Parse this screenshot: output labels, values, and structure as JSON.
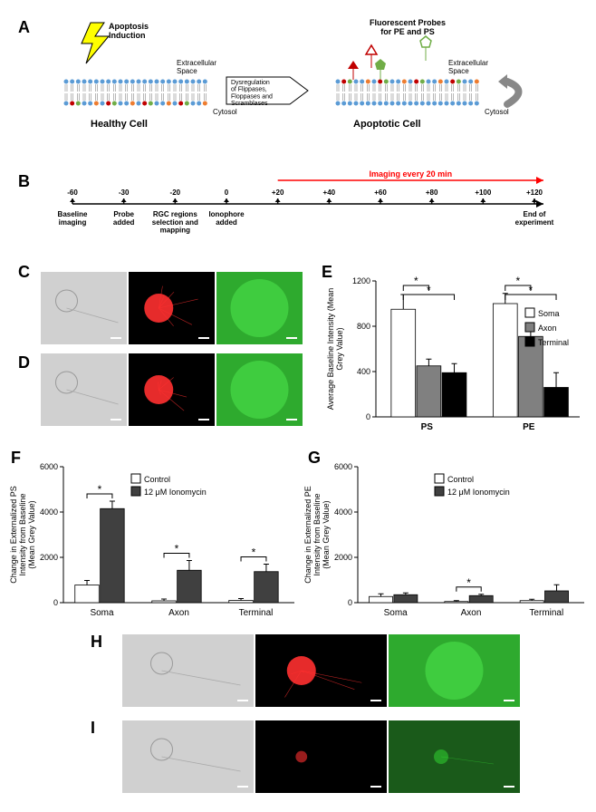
{
  "labels": {
    "A": "A",
    "B": "B",
    "C": "C",
    "D": "D",
    "E": "E",
    "F": "F",
    "G": "G",
    "H": "H",
    "I": "I"
  },
  "panelA": {
    "apoptosis_induction": "Apoptosis\nInduction",
    "extracellular": "Extracellular\nSpace",
    "cytosol": "Cytosol",
    "healthy": "Healthy Cell",
    "apoptotic": "Apoptotic Cell",
    "middle": "Dysregulation\nof Flippases,\nFloppases and\nScramblases",
    "probes": "Fluorescent Probes\nfor PE and PS",
    "colors": {
      "blue": "#5b9bd5",
      "red": "#c00000",
      "green": "#70ad47",
      "orange": "#ed7d31",
      "bolt_fill": "#ffff00",
      "bolt_stroke": "#000000",
      "probe_red": "#c00000",
      "probe_green": "#70ad47"
    }
  },
  "panelB": {
    "timepoints": [
      "-60",
      "-30",
      "-20",
      "0",
      "+20",
      "+40",
      "+60",
      "+80",
      "+100",
      "+120"
    ],
    "labels_below": [
      "Baseline\nimaging",
      "Probe\nadded",
      "RGC regions\nselection and\nmapping",
      "Ionophore\nadded",
      "",
      "",
      "",
      "",
      "",
      "End of\nexperiment"
    ],
    "imaging_text": "Imaging every 20 min",
    "line_color": "#000000",
    "arrow_color": "#ff0000"
  },
  "panelE": {
    "type": "bar",
    "title": null,
    "ylabel": "Average Baseline Intensity (Mean\nGrey Value)",
    "ylim": [
      0,
      1200
    ],
    "yticks": [
      0,
      400,
      800,
      1200
    ],
    "groups": [
      "PS",
      "PE"
    ],
    "series": [
      {
        "name": "Soma",
        "color": "#ffffff",
        "values": [
          950,
          1000
        ],
        "err": [
          130,
          90
        ]
      },
      {
        "name": "Axon",
        "color": "#808080",
        "values": [
          450,
          710
        ],
        "err": [
          60,
          80
        ]
      },
      {
        "name": "Terminal",
        "color": "#000000",
        "values": [
          390,
          260
        ],
        "err": [
          80,
          130
        ]
      }
    ],
    "sig_pairs": [
      [
        0,
        0,
        1
      ],
      [
        0,
        0,
        2
      ],
      [
        1,
        0,
        1
      ],
      [
        1,
        0,
        2
      ]
    ],
    "sig_label": "*",
    "axis_color": "#000000",
    "font_size": 10
  },
  "panelF": {
    "type": "bar",
    "ylabel": "Change in Externalized PS\nIntensity from Baseline\n(Mean Grey Value)",
    "ylim": [
      0,
      6000
    ],
    "yticks": [
      0,
      2000,
      4000,
      6000
    ],
    "groups": [
      "Soma",
      "Axon",
      "Terminal"
    ],
    "series": [
      {
        "name": "Control",
        "color": "#ffffff",
        "values": [
          780,
          80,
          100
        ],
        "err": [
          200,
          80,
          80
        ]
      },
      {
        "name": "12 μM Ionomycin",
        "color": "#404040",
        "values": [
          4150,
          1430,
          1370
        ],
        "err": [
          330,
          430,
          330
        ]
      }
    ],
    "sig_label": "*",
    "sig_on": [
      true,
      true,
      true
    ]
  },
  "panelG": {
    "type": "bar",
    "ylabel": "Change in Externalized PE\nIntensity from Baseline\n(Mean Grey Value)",
    "ylim": [
      0,
      6000
    ],
    "yticks": [
      0,
      2000,
      4000,
      6000
    ],
    "groups": [
      "Soma",
      "Axon",
      "Terminal"
    ],
    "series": [
      {
        "name": "Control",
        "color": "#ffffff",
        "values": [
          270,
          50,
          90
        ],
        "err": [
          120,
          40,
          60
        ]
      },
      {
        "name": "12 μM Ionomycin",
        "color": "#404040",
        "values": [
          350,
          310,
          520
        ],
        "err": [
          80,
          60,
          270
        ]
      }
    ],
    "sig_label": "*",
    "sig_on": [
      false,
      true,
      false
    ]
  },
  "images": {
    "brightfield_bg": "#d0d0d0",
    "red_bg": "#000000",
    "red_signal": "#ff3030",
    "green_bg": "#1a5a1a",
    "green_bright": "#3aff3a"
  }
}
